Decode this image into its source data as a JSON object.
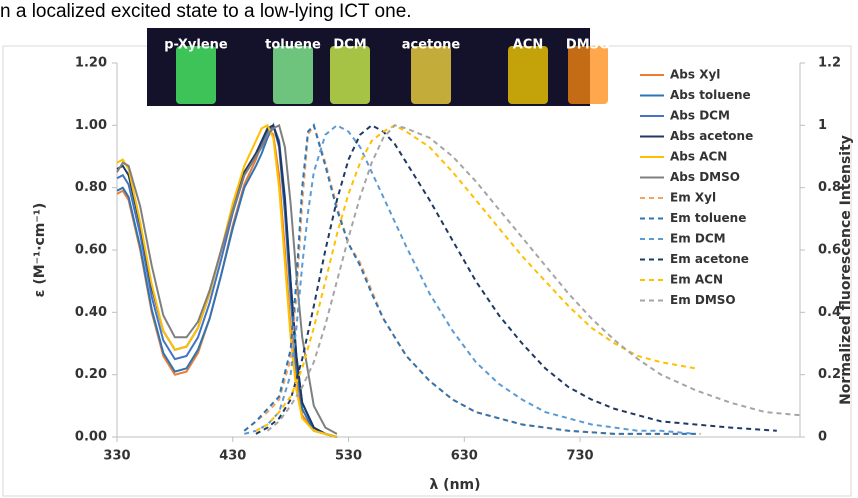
{
  "header_text": "n a localized excited state to a low-lying ICT one.",
  "inset_labels": [
    "p-Xylene",
    "toluene",
    "DCM",
    "acetone",
    "ACN",
    "DMSO"
  ],
  "chart_data": {
    "type": "line",
    "xlabel": "λ (nm)",
    "ylabel": "ε (M⁻¹·cm⁻¹)",
    "y2label": "Normalized fluorescence Intensity",
    "xlim": [
      330,
      920
    ],
    "xticks": [
      330,
      430,
      530,
      630,
      730
    ],
    "ylim": [
      0,
      1.2
    ],
    "yticks": [
      {
        "value": 0,
        "label": "0.00"
      },
      {
        "value": 0.2,
        "label": "0.20"
      },
      {
        "value": 0.4,
        "label": "0.40"
      },
      {
        "value": 0.6,
        "label": "0.60"
      },
      {
        "value": 0.8,
        "label": "0.80"
      },
      {
        "value": 1,
        "label": "1.00"
      },
      {
        "value": 1.2,
        "label": "1.20"
      }
    ],
    "y2lim": [
      0,
      1.2
    ],
    "y2ticks": [
      0,
      0.2,
      0.4,
      0.6,
      0.8,
      1,
      1.2
    ],
    "series": [
      {
        "name": "Abs Xyl",
        "color": "#ed7d31",
        "dash": false,
        "x": [
          330,
          335,
          340,
          350,
          360,
          370,
          380,
          390,
          400,
          410,
          420,
          430,
          440,
          450,
          455,
          460,
          465,
          470,
          475,
          480,
          485,
          490,
          500,
          510,
          520
        ],
        "values": [
          0.78,
          0.79,
          0.76,
          0.6,
          0.4,
          0.26,
          0.2,
          0.21,
          0.27,
          0.38,
          0.52,
          0.68,
          0.81,
          0.89,
          0.94,
          0.99,
          0.97,
          0.84,
          0.6,
          0.35,
          0.17,
          0.07,
          0.02,
          0.01,
          0
        ]
      },
      {
        "name": "Abs toluene",
        "color": "#2e75b6",
        "dash": false,
        "x": [
          330,
          335,
          340,
          350,
          360,
          370,
          380,
          390,
          400,
          410,
          420,
          430,
          440,
          450,
          455,
          460,
          465,
          470,
          475,
          480,
          485,
          490,
          500,
          510,
          520
        ],
        "values": [
          0.79,
          0.8,
          0.77,
          0.61,
          0.41,
          0.27,
          0.21,
          0.22,
          0.28,
          0.38,
          0.52,
          0.67,
          0.8,
          0.87,
          0.91,
          0.96,
          1.0,
          0.93,
          0.72,
          0.45,
          0.22,
          0.09,
          0.02,
          0.01,
          0
        ]
      },
      {
        "name": "Abs DCM",
        "color": "#4472c4",
        "dash": false,
        "x": [
          330,
          335,
          340,
          350,
          360,
          370,
          380,
          390,
          400,
          410,
          420,
          430,
          440,
          450,
          455,
          460,
          465,
          470,
          475,
          480,
          485,
          490,
          500,
          510,
          520
        ],
        "values": [
          0.83,
          0.84,
          0.81,
          0.65,
          0.45,
          0.31,
          0.25,
          0.26,
          0.32,
          0.43,
          0.57,
          0.72,
          0.84,
          0.9,
          0.94,
          0.98,
          1.0,
          0.95,
          0.77,
          0.5,
          0.26,
          0.11,
          0.03,
          0.01,
          0
        ]
      },
      {
        "name": "Abs acetone",
        "color": "#203864",
        "dash": false,
        "x": [
          330,
          335,
          340,
          350,
          360,
          370,
          380,
          390,
          400,
          410,
          420,
          430,
          440,
          450,
          455,
          460,
          465,
          470,
          475,
          480,
          485,
          490,
          500,
          510,
          520
        ],
        "values": [
          0.86,
          0.87,
          0.84,
          0.68,
          0.48,
          0.34,
          0.28,
          0.29,
          0.35,
          0.46,
          0.6,
          0.74,
          0.85,
          0.91,
          0.95,
          0.99,
          1.0,
          0.94,
          0.76,
          0.5,
          0.26,
          0.11,
          0.03,
          0.01,
          0
        ]
      },
      {
        "name": "Abs ACN",
        "color": "#ffc000",
        "dash": false,
        "x": [
          330,
          335,
          340,
          350,
          360,
          370,
          380,
          390,
          400,
          410,
          420,
          430,
          440,
          450,
          455,
          460,
          465,
          470,
          475,
          480,
          485,
          490,
          500,
          510,
          520
        ],
        "values": [
          0.88,
          0.89,
          0.86,
          0.69,
          0.49,
          0.34,
          0.28,
          0.29,
          0.35,
          0.46,
          0.6,
          0.75,
          0.87,
          0.95,
          0.99,
          1.0,
          0.96,
          0.8,
          0.56,
          0.32,
          0.15,
          0.06,
          0.02,
          0.01,
          0
        ]
      },
      {
        "name": "Abs DMSO",
        "color": "#7f7f7f",
        "dash": false,
        "x": [
          330,
          335,
          340,
          350,
          360,
          370,
          380,
          390,
          400,
          410,
          420,
          430,
          440,
          450,
          455,
          460,
          465,
          470,
          475,
          480,
          485,
          490,
          500,
          510,
          520
        ],
        "values": [
          0.85,
          0.88,
          0.87,
          0.74,
          0.55,
          0.39,
          0.32,
          0.32,
          0.37,
          0.47,
          0.6,
          0.73,
          0.84,
          0.9,
          0.93,
          0.97,
          0.99,
          1.0,
          0.93,
          0.75,
          0.52,
          0.32,
          0.1,
          0.03,
          0.01
        ]
      },
      {
        "name": "Em Xyl",
        "color": "#f4a460",
        "dash": true,
        "axis": "y2",
        "x": [
          440,
          450,
          460,
          470,
          480,
          485,
          490,
          495,
          500,
          510,
          520,
          530,
          540,
          550,
          560,
          580,
          600,
          620,
          640,
          660,
          680,
          700,
          720,
          740,
          760,
          780,
          800,
          834
        ],
        "values": [
          0.02,
          0.05,
          0.08,
          0.12,
          0.25,
          0.45,
          0.75,
          0.97,
          1.0,
          0.88,
          0.74,
          0.62,
          0.56,
          0.47,
          0.38,
          0.26,
          0.18,
          0.12,
          0.08,
          0.06,
          0.04,
          0.03,
          0.02,
          0.015,
          0.01,
          0.01,
          0.01,
          0.01
        ]
      },
      {
        "name": "Em toluene",
        "color": "#2e75b6",
        "dash": true,
        "axis": "y2",
        "x": [
          440,
          450,
          460,
          470,
          480,
          485,
          490,
          495,
          500,
          510,
          520,
          530,
          540,
          550,
          560,
          580,
          600,
          620,
          640,
          660,
          680,
          700,
          720,
          740,
          760,
          780,
          800,
          834
        ],
        "values": [
          0.02,
          0.05,
          0.09,
          0.13,
          0.28,
          0.5,
          0.8,
          0.98,
          1.0,
          0.87,
          0.73,
          0.62,
          0.55,
          0.46,
          0.38,
          0.26,
          0.18,
          0.12,
          0.08,
          0.06,
          0.04,
          0.03,
          0.02,
          0.015,
          0.01,
          0.01,
          0.01,
          0.01
        ]
      },
      {
        "name": "Em DCM",
        "color": "#5b9bd5",
        "dash": true,
        "axis": "y2",
        "x": [
          440,
          450,
          460,
          470,
          480,
          485,
          490,
          495,
          500,
          510,
          520,
          530,
          540,
          550,
          560,
          580,
          600,
          620,
          640,
          660,
          680,
          700,
          720,
          740,
          760,
          780,
          800,
          830
        ],
        "values": [
          0.01,
          0.02,
          0.04,
          0.08,
          0.2,
          0.35,
          0.55,
          0.72,
          0.85,
          0.97,
          1.0,
          0.98,
          0.93,
          0.85,
          0.77,
          0.61,
          0.46,
          0.34,
          0.24,
          0.17,
          0.12,
          0.08,
          0.06,
          0.04,
          0.03,
          0.02,
          0.02,
          0.01
        ]
      },
      {
        "name": "Em acetone",
        "color": "#1f3864",
        "dash": true,
        "axis": "y2",
        "x": [
          450,
          460,
          470,
          480,
          490,
          500,
          510,
          520,
          530,
          540,
          550,
          560,
          570,
          580,
          600,
          620,
          640,
          660,
          680,
          700,
          720,
          740,
          760,
          780,
          800,
          830,
          860,
          900
        ],
        "values": [
          0.01,
          0.03,
          0.06,
          0.12,
          0.25,
          0.42,
          0.6,
          0.76,
          0.89,
          0.97,
          1.0,
          0.98,
          0.94,
          0.88,
          0.76,
          0.63,
          0.5,
          0.39,
          0.3,
          0.22,
          0.16,
          0.12,
          0.09,
          0.07,
          0.05,
          0.04,
          0.03,
          0.02
        ]
      },
      {
        "name": "Em ACN",
        "color": "#ffc000",
        "dash": true,
        "axis": "y2",
        "x": [
          450,
          460,
          470,
          480,
          490,
          500,
          510,
          520,
          530,
          540,
          550,
          560,
          570,
          580,
          600,
          620,
          640,
          660,
          680,
          700,
          720,
          740,
          760,
          780,
          800,
          830
        ],
        "values": [
          0.02,
          0.04,
          0.08,
          0.13,
          0.22,
          0.35,
          0.5,
          0.65,
          0.78,
          0.88,
          0.95,
          0.98,
          1.0,
          0.98,
          0.93,
          0.85,
          0.76,
          0.67,
          0.58,
          0.5,
          0.42,
          0.35,
          0.3,
          0.26,
          0.24,
          0.22
        ]
      },
      {
        "name": "Em DMSO",
        "color": "#a5a5a5",
        "dash": true,
        "axis": "y2",
        "x": [
          460,
          470,
          480,
          490,
          500,
          510,
          520,
          530,
          540,
          550,
          560,
          570,
          580,
          600,
          620,
          640,
          660,
          680,
          700,
          720,
          740,
          760,
          780,
          800,
          830,
          860,
          890,
          920
        ],
        "values": [
          0.02,
          0.05,
          0.1,
          0.16,
          0.24,
          0.36,
          0.5,
          0.64,
          0.77,
          0.88,
          0.96,
          1.0,
          0.99,
          0.96,
          0.9,
          0.82,
          0.73,
          0.64,
          0.55,
          0.46,
          0.38,
          0.31,
          0.25,
          0.2,
          0.15,
          0.11,
          0.08,
          0.07
        ]
      }
    ]
  }
}
